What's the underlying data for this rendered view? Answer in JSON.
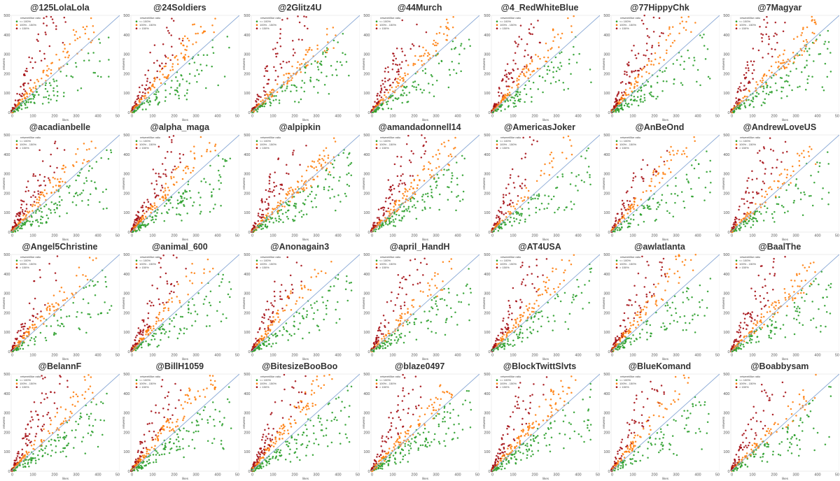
{
  "chart_data": {
    "type": "scatter",
    "xlabel": "likes",
    "ylabel": "retweets",
    "xlim": [
      0,
      500
    ],
    "ylim": [
      0,
      500
    ],
    "x_ticks": [
      "0",
      "100",
      "200",
      "300",
      "400",
      "50"
    ],
    "y_ticks": [
      "0",
      "100",
      "200",
      "300",
      "400",
      "500"
    ],
    "legend": {
      "title": "retweet/like ratio",
      "placement": "top-left",
      "entries": [
        {
          "label": "<= 100%",
          "color": "#2ca02c"
        },
        {
          "label": "100% - 150%",
          "color": "#ff7f0e"
        },
        {
          "label": "> 150%",
          "color": "#a50f15"
        }
      ]
    },
    "reference_line": {
      "slope": 1,
      "color": "#8aa9d6"
    },
    "panels": [
      {
        "title": "@125LolaLola"
      },
      {
        "title": "@24Soldiers"
      },
      {
        "title": "@2Glitz4U"
      },
      {
        "title": "@44Murch"
      },
      {
        "title": "@4_RedWhiteBlue"
      },
      {
        "title": "@77HippyChk"
      },
      {
        "title": "@7Magyar"
      },
      {
        "title": "@acadianbelle"
      },
      {
        "title": "@alpha_maga"
      },
      {
        "title": "@alpipkin"
      },
      {
        "title": "@amandadonnell14"
      },
      {
        "title": "@AmericasJoker"
      },
      {
        "title": "@AnBeOnd"
      },
      {
        "title": "@AndrewLoveUS"
      },
      {
        "title": "@Angel5Christine"
      },
      {
        "title": "@animal_600"
      },
      {
        "title": "@Anonagain3"
      },
      {
        "title": "@april_HandH"
      },
      {
        "title": "@AT4USA"
      },
      {
        "title": "@awlatlanta"
      },
      {
        "title": "@BaalThe"
      },
      {
        "title": "@BelannF"
      },
      {
        "title": "@BillH1059"
      },
      {
        "title": "@BitesizeBooBoo"
      },
      {
        "title": "@blaze0497"
      },
      {
        "title": "@BlockTwittSlvts"
      },
      {
        "title": "@BlueKomand"
      },
      {
        "title": "@Boabbysam"
      }
    ]
  }
}
